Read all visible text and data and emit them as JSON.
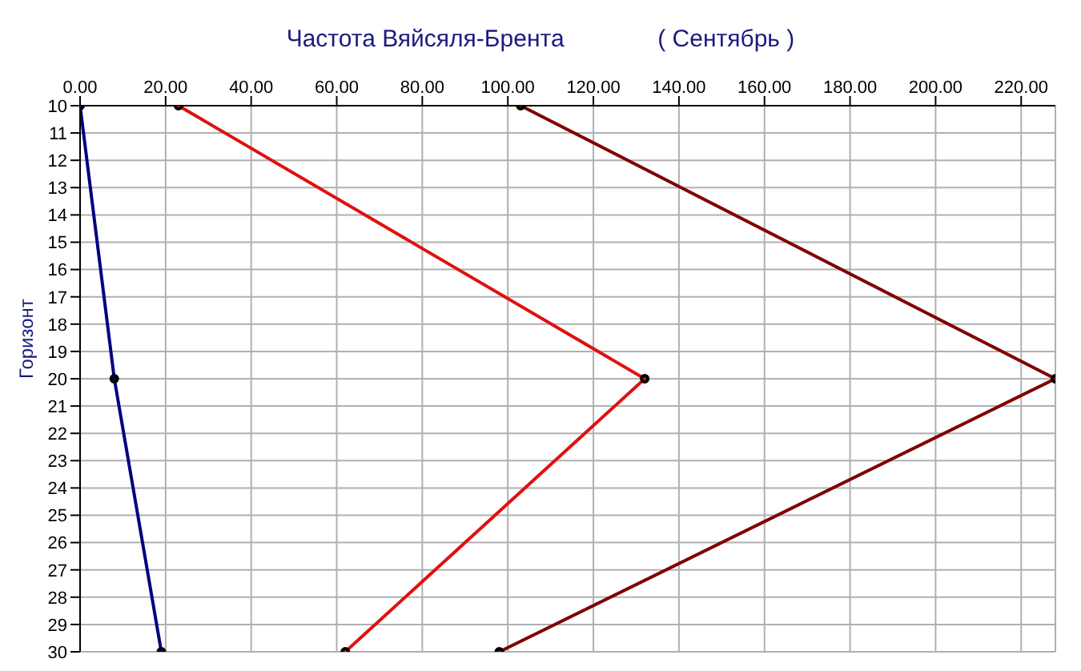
{
  "chart_data": {
    "type": "line",
    "title": "Частота Вяйсяля-Брента              ( Сентябрь )",
    "ylabel": "Горизонт",
    "series": [
      {
        "color": "#000080",
        "x": [
          0,
          8,
          19
        ],
        "values": [
          10,
          20,
          30
        ]
      },
      {
        "color": "#e01010",
        "x": [
          23,
          132,
          62
        ],
        "values": [
          10,
          20,
          30
        ]
      },
      {
        "color": "#800000",
        "x": [
          103,
          228,
          98
        ],
        "values": [
          10,
          20,
          30
        ]
      }
    ],
    "xlim": [
      0,
      228
    ],
    "xticks": [
      {
        "value": 0,
        "label": "0.00"
      },
      {
        "value": 20,
        "label": "20.00"
      },
      {
        "value": 40,
        "label": "40.00"
      },
      {
        "value": 60,
        "label": "60.00"
      },
      {
        "value": 80,
        "label": "80.00"
      },
      {
        "value": 100,
        "label": "100.00"
      },
      {
        "value": 120,
        "label": "120.00"
      },
      {
        "value": 140,
        "label": "140.00"
      },
      {
        "value": 160,
        "label": "160.00"
      },
      {
        "value": 180,
        "label": "180.00"
      },
      {
        "value": 200,
        "label": "200.00"
      },
      {
        "value": 220,
        "label": "220.00"
      }
    ],
    "ylim": [
      30,
      10
    ],
    "yticks": [
      10,
      11,
      12,
      13,
      14,
      15,
      16,
      17,
      18,
      19,
      20,
      21,
      22,
      23,
      24,
      25,
      26,
      27,
      28,
      29,
      30
    ],
    "grid": true,
    "marker": "circle",
    "line_style": "solid",
    "legend": false
  }
}
